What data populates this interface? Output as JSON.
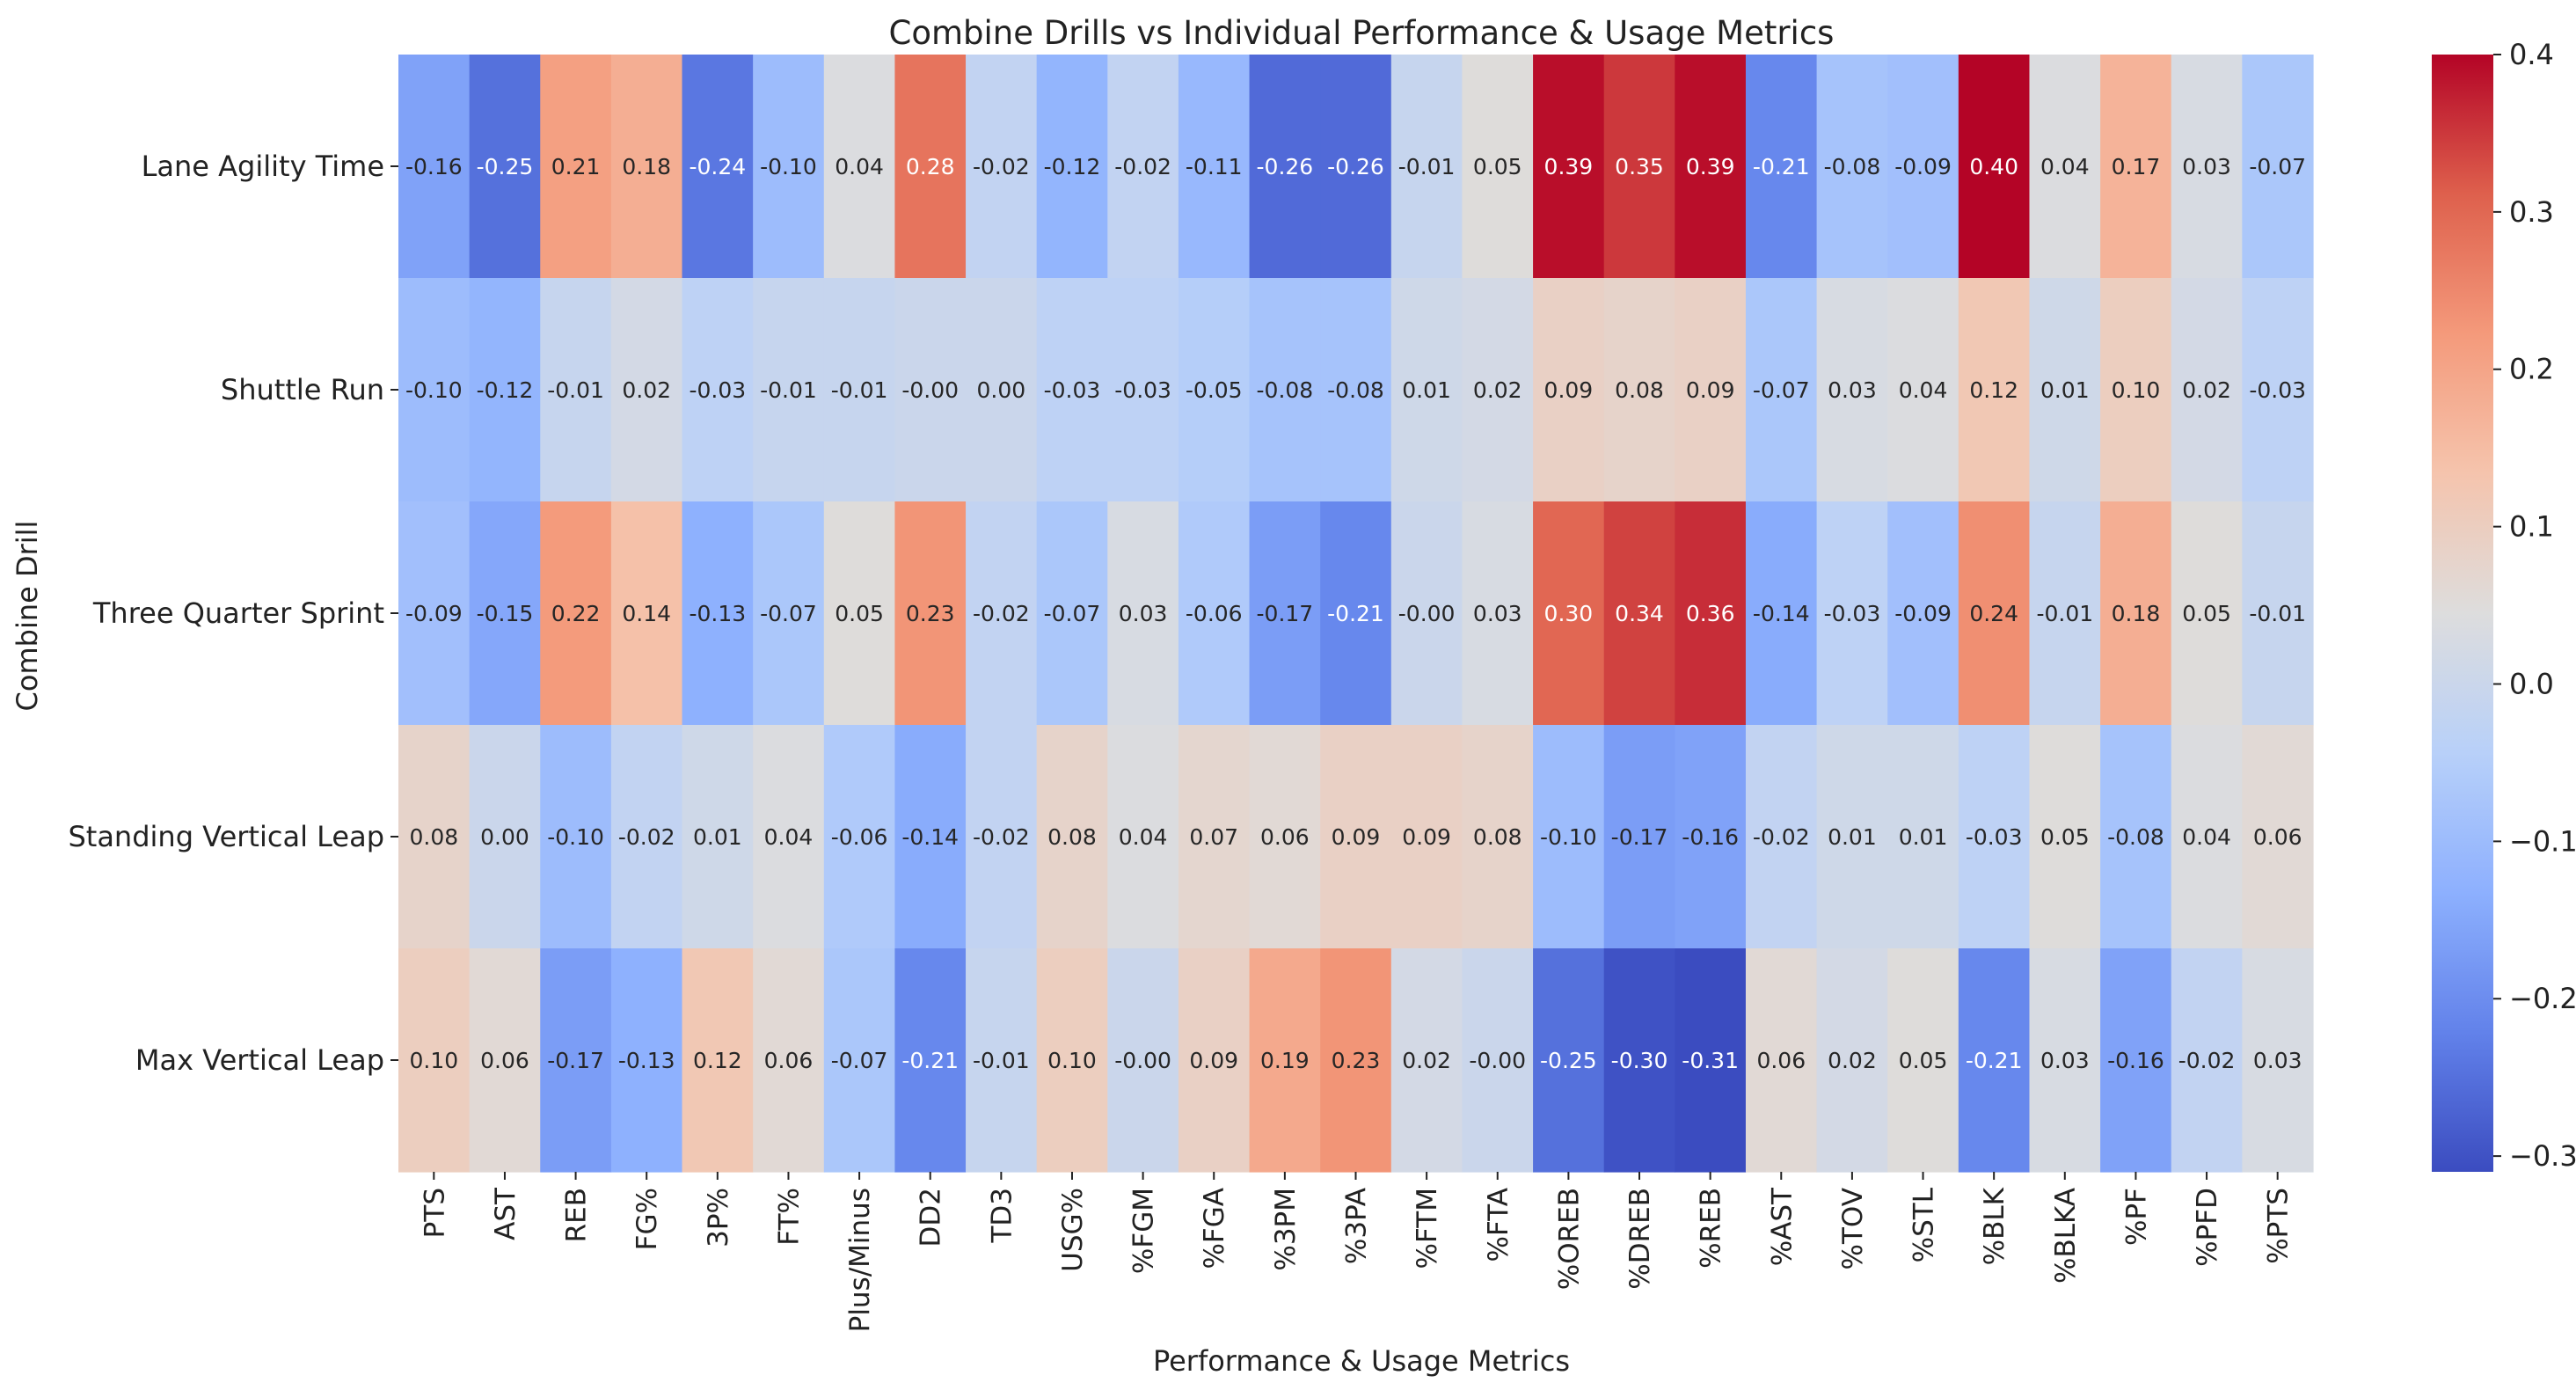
{
  "chart_data": {
    "type": "heatmap",
    "title": "Combine Drills vs Individual Performance & Usage Metrics",
    "xlabel": "Performance & Usage Metrics",
    "ylabel": "Combine Drill",
    "rows": [
      "Lane Agility Time",
      "Shuttle Run",
      "Three Quarter Sprint",
      "Standing Vertical Leap",
      "Max Vertical Leap"
    ],
    "columns": [
      "PTS",
      "AST",
      "REB",
      "FG%",
      "3P%",
      "FT%",
      "Plus/Minus",
      "DD2",
      "TD3",
      "USG%",
      "%FGM",
      "%FGA",
      "%3PM",
      "%3PA",
      "%FTM",
      "%FTA",
      "%OREB",
      "%DREB",
      "%REB",
      "%AST",
      "%TOV",
      "%STL",
      "%BLK",
      "%BLKA",
      "%PF",
      "%PFD",
      "%PTS"
    ],
    "values": [
      [
        -0.16,
        -0.25,
        0.21,
        0.18,
        -0.24,
        -0.1,
        0.04,
        0.28,
        -0.02,
        -0.12,
        -0.02,
        -0.11,
        -0.26,
        -0.26,
        -0.01,
        0.05,
        0.39,
        0.35,
        0.39,
        -0.21,
        -0.08,
        -0.09,
        0.4,
        0.04,
        0.17,
        0.03,
        -0.07
      ],
      [
        -0.1,
        -0.12,
        -0.01,
        0.02,
        -0.03,
        -0.01,
        -0.01,
        -0.0,
        0.0,
        -0.03,
        -0.03,
        -0.05,
        -0.08,
        -0.08,
        0.01,
        0.02,
        0.09,
        0.08,
        0.09,
        -0.07,
        0.03,
        0.04,
        0.12,
        0.01,
        0.1,
        0.02,
        -0.03
      ],
      [
        -0.09,
        -0.15,
        0.22,
        0.14,
        -0.13,
        -0.07,
        0.05,
        0.23,
        -0.02,
        -0.07,
        0.03,
        -0.06,
        -0.17,
        -0.21,
        -0.0,
        0.03,
        0.3,
        0.34,
        0.36,
        -0.14,
        -0.03,
        -0.09,
        0.24,
        -0.01,
        0.18,
        0.05,
        -0.01
      ],
      [
        0.08,
        0.0,
        -0.1,
        -0.02,
        0.01,
        0.04,
        -0.06,
        -0.14,
        -0.02,
        0.08,
        0.04,
        0.07,
        0.06,
        0.09,
        0.09,
        0.08,
        -0.1,
        -0.17,
        -0.16,
        -0.02,
        0.01,
        0.01,
        -0.03,
        0.05,
        -0.08,
        0.04,
        0.06
      ],
      [
        0.1,
        0.06,
        -0.17,
        -0.13,
        0.12,
        0.06,
        -0.07,
        -0.21,
        -0.01,
        0.1,
        -0.0,
        0.09,
        0.19,
        0.23,
        0.02,
        -0.0,
        -0.25,
        -0.3,
        -0.31,
        0.06,
        0.02,
        0.05,
        -0.21,
        0.03,
        -0.16,
        -0.02,
        0.03
      ]
    ],
    "display_labels": [
      [
        "-0.16",
        "-0.25",
        "0.21",
        "0.18",
        "-0.24",
        "-0.10",
        "0.04",
        "0.28",
        "-0.02",
        "-0.12",
        "-0.02",
        "-0.11",
        "-0.26",
        "-0.26",
        "-0.01",
        "0.05",
        "0.39",
        "0.35",
        "0.39",
        "-0.21",
        "-0.08",
        "-0.09",
        "0.40",
        "0.04",
        "0.17",
        "0.03",
        "-0.07"
      ],
      [
        "-0.10",
        "-0.12",
        "-0.01",
        "0.02",
        "-0.03",
        "-0.01",
        "-0.01",
        "-0.00",
        "0.00",
        "-0.03",
        "-0.03",
        "-0.05",
        "-0.08",
        "-0.08",
        "0.01",
        "0.02",
        "0.09",
        "0.08",
        "0.09",
        "-0.07",
        "0.03",
        "0.04",
        "0.12",
        "0.01",
        "0.10",
        "0.02",
        "-0.03"
      ],
      [
        "-0.09",
        "-0.15",
        "0.22",
        "0.14",
        "-0.13",
        "-0.07",
        "0.05",
        "0.23",
        "-0.02",
        "-0.07",
        "0.03",
        "-0.06",
        "-0.17",
        "-0.21",
        "-0.00",
        "0.03",
        "0.30",
        "0.34",
        "0.36",
        "-0.14",
        "-0.03",
        "-0.09",
        "0.24",
        "-0.01",
        "0.18",
        "0.05",
        "-0.01"
      ],
      [
        "0.08",
        "0.00",
        "-0.10",
        "-0.02",
        "0.01",
        "0.04",
        "-0.06",
        "-0.14",
        "-0.02",
        "0.08",
        "0.04",
        "0.07",
        "0.06",
        "0.09",
        "0.09",
        "0.08",
        "-0.10",
        "-0.17",
        "-0.16",
        "-0.02",
        "0.01",
        "0.01",
        "-0.03",
        "0.05",
        "-0.08",
        "0.04",
        "0.06"
      ],
      [
        "0.10",
        "0.06",
        "-0.17",
        "-0.13",
        "0.12",
        "0.06",
        "-0.07",
        "-0.21",
        "-0.01",
        "0.10",
        "-0.00",
        "0.09",
        "0.19",
        "0.23",
        "0.02",
        "-0.00",
        "-0.25",
        "-0.30",
        "-0.31",
        "0.06",
        "0.02",
        "0.05",
        "-0.21",
        "0.03",
        "-0.16",
        "-0.02",
        "0.03"
      ]
    ],
    "colormap": "coolwarm",
    "vmin": -0.31,
    "vmax": 0.4,
    "colorbar_ticks": [
      {
        "value": 0.4,
        "label": "0.4"
      },
      {
        "value": 0.3,
        "label": "0.3"
      },
      {
        "value": 0.2,
        "label": "0.2"
      },
      {
        "value": 0.1,
        "label": "0.1"
      },
      {
        "value": 0.0,
        "label": "0.0"
      },
      {
        "value": -0.1,
        "label": "−0.1"
      },
      {
        "value": -0.2,
        "label": "−0.2"
      },
      {
        "value": -0.3,
        "label": "−0.3"
      }
    ],
    "grid": false,
    "legend": "colorbar-right"
  }
}
